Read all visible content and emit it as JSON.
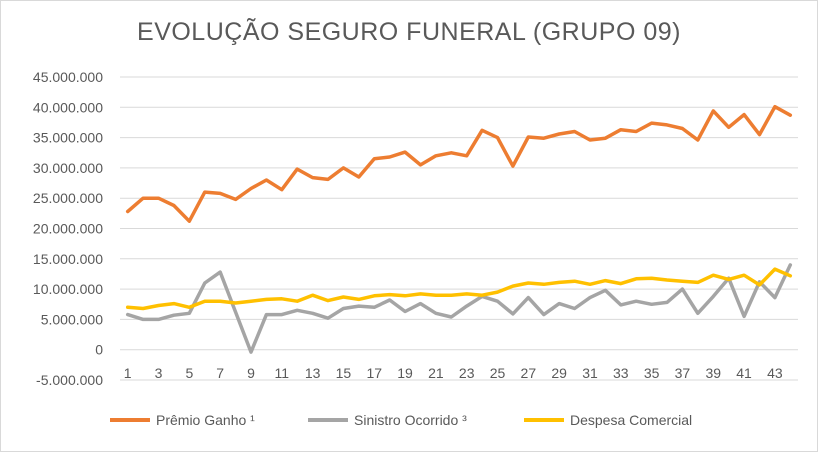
{
  "chart_data": {
    "type": "line",
    "title": "EVOLUÇÃO SEGURO FUNERAL (GRUPO 09)",
    "xlabel": "",
    "ylabel": "",
    "ylim": [
      -5000000,
      45000000
    ],
    "y_ticks": [
      {
        "value": 45000000,
        "label": "45.000.000"
      },
      {
        "value": 40000000,
        "label": "40.000.000"
      },
      {
        "value": 35000000,
        "label": "35.000.000"
      },
      {
        "value": 30000000,
        "label": "30.000.000"
      },
      {
        "value": 25000000,
        "label": "25.000.000"
      },
      {
        "value": 20000000,
        "label": "20.000.000"
      },
      {
        "value": 15000000,
        "label": "15.000.000"
      },
      {
        "value": 10000000,
        "label": "10.000.000"
      },
      {
        "value": 5000000,
        "label": "5.000.000"
      },
      {
        "value": 0,
        "label": "0"
      },
      {
        "value": -5000000,
        "label": "-5.000.000"
      }
    ],
    "x": [
      1,
      2,
      3,
      4,
      5,
      6,
      7,
      8,
      9,
      10,
      11,
      12,
      13,
      14,
      15,
      16,
      17,
      18,
      19,
      20,
      21,
      22,
      23,
      24,
      25,
      26,
      27,
      28,
      29,
      30,
      31,
      32,
      33,
      34,
      35,
      36,
      37,
      38,
      39,
      40,
      41,
      42,
      43,
      44
    ],
    "x_tick_labels": [
      "1",
      "3",
      "5",
      "7",
      "9",
      "11",
      "13",
      "15",
      "17",
      "19",
      "21",
      "23",
      "25",
      "27",
      "29",
      "31",
      "33",
      "35",
      "37",
      "39",
      "41",
      "43"
    ],
    "grid": true,
    "legend_position": "bottom",
    "series": [
      {
        "name": "Prêmio Ganho ¹",
        "color": "#ED7D31",
        "values": [
          22800000,
          25000000,
          25000000,
          23800000,
          21200000,
          26000000,
          25800000,
          24800000,
          26600000,
          28000000,
          26400000,
          29800000,
          28400000,
          28100000,
          30000000,
          28500000,
          31500000,
          31800000,
          32600000,
          30500000,
          32000000,
          32500000,
          32000000,
          36200000,
          35000000,
          30300000,
          35100000,
          34900000,
          35600000,
          36000000,
          34600000,
          34900000,
          36300000,
          36000000,
          37400000,
          37100000,
          36500000,
          34600000,
          39400000,
          36700000,
          38800000,
          35500000,
          40100000,
          38700000
        ]
      },
      {
        "name": "Sinistro Ocorrido ³",
        "color": "#A5A5A5",
        "values": [
          5800000,
          5000000,
          5000000,
          5700000,
          6000000,
          11000000,
          12800000,
          6200000,
          -400000,
          5800000,
          5800000,
          6500000,
          6000000,
          5200000,
          6800000,
          7200000,
          7000000,
          8200000,
          6300000,
          7600000,
          6000000,
          5400000,
          7200000,
          8800000,
          8000000,
          5900000,
          8600000,
          5800000,
          7600000,
          6800000,
          8600000,
          9800000,
          7400000,
          8000000,
          7500000,
          7800000,
          10000000,
          6000000,
          8800000,
          11800000,
          5500000,
          11200000,
          8600000,
          14000000
        ]
      },
      {
        "name": "Despesa Comercial",
        "color": "#FFC000",
        "values": [
          7000000,
          6800000,
          7300000,
          7600000,
          7000000,
          8000000,
          8000000,
          7700000,
          8000000,
          8300000,
          8400000,
          8000000,
          9000000,
          8100000,
          8700000,
          8300000,
          8900000,
          9100000,
          8900000,
          9200000,
          9000000,
          9000000,
          9200000,
          9000000,
          9500000,
          10500000,
          11000000,
          10800000,
          11100000,
          11300000,
          10800000,
          11400000,
          10900000,
          11700000,
          11800000,
          11500000,
          11300000,
          11100000,
          12300000,
          11600000,
          12300000,
          10700000,
          13300000,
          12200000
        ]
      }
    ]
  }
}
